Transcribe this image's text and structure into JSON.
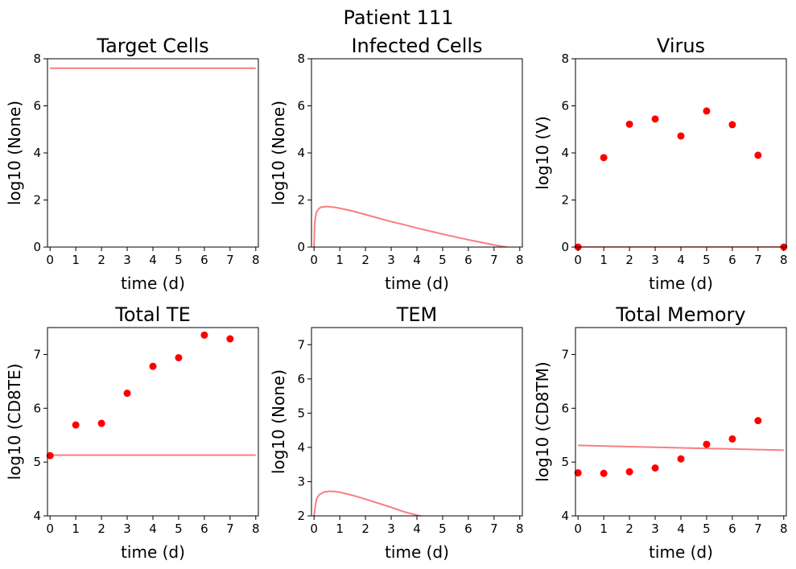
{
  "figure": {
    "title": "Patient 111"
  },
  "colors": {
    "model_line": "#f77f7f",
    "observed_points": "#ff0000"
  },
  "chart_data": [
    {
      "type": "line",
      "title": "Target Cells",
      "xlabel": "time (d)",
      "ylabel": "log10 (None)",
      "xlim": [
        -0.1,
        8.1
      ],
      "ylim": [
        0,
        8
      ],
      "xticks": [
        0,
        1,
        2,
        3,
        4,
        5,
        6,
        7,
        8
      ],
      "yticks": [
        0,
        2,
        4,
        6,
        8
      ],
      "model_line": {
        "x": [
          0,
          8
        ],
        "y": [
          7.6,
          7.6
        ]
      },
      "observed": {
        "x": [],
        "y": []
      }
    },
    {
      "type": "line",
      "title": "Infected Cells",
      "xlabel": "time (d)",
      "ylabel": "log10 (None)",
      "xlim": [
        -0.1,
        8.1
      ],
      "ylim": [
        0,
        8
      ],
      "xticks": [
        0,
        1,
        2,
        3,
        4,
        5,
        6,
        7,
        8
      ],
      "yticks": [
        0,
        2,
        4,
        6,
        8
      ],
      "model_line": {
        "x": [
          0.0,
          0.02,
          0.05,
          0.1,
          0.2,
          0.3,
          0.5,
          0.8,
          1.0,
          1.5,
          2.0,
          2.5,
          3.0,
          3.5,
          4.0,
          4.5,
          5.0,
          5.5,
          6.0,
          6.5,
          7.0,
          7.3,
          7.5
        ],
        "y": [
          0.0,
          0.9,
          1.25,
          1.5,
          1.65,
          1.7,
          1.72,
          1.69,
          1.65,
          1.53,
          1.38,
          1.23,
          1.08,
          0.95,
          0.81,
          0.68,
          0.55,
          0.43,
          0.31,
          0.2,
          0.09,
          0.03,
          0.0
        ]
      },
      "observed": {
        "x": [],
        "y": []
      }
    },
    {
      "type": "scatter",
      "title": "Virus",
      "xlabel": "time (d)",
      "ylabel": "log10 (V)",
      "xlim": [
        -0.1,
        8.1
      ],
      "ylim": [
        0,
        8
      ],
      "xticks": [
        0,
        1,
        2,
        3,
        4,
        5,
        6,
        7,
        8
      ],
      "yticks": [
        0,
        2,
        4,
        6,
        8
      ],
      "model_line": {
        "x": [
          0,
          8
        ],
        "y": [
          0,
          0
        ]
      },
      "observed": {
        "x": [
          0,
          1,
          2,
          3,
          4,
          5,
          6,
          7,
          8
        ],
        "y": [
          0.0,
          3.8,
          5.22,
          5.44,
          4.72,
          5.78,
          5.2,
          3.9,
          0.0
        ]
      }
    },
    {
      "type": "scatter",
      "title": "Total TE",
      "xlabel": "time (d)",
      "ylabel": "log10 (CD8TE)",
      "xlim": [
        -0.1,
        8.1
      ],
      "ylim": [
        4,
        7.5
      ],
      "xticks": [
        0,
        1,
        2,
        3,
        4,
        5,
        6,
        7,
        8
      ],
      "yticks": [
        4,
        5,
        6,
        7
      ],
      "model_line": {
        "x": [
          0,
          8
        ],
        "y": [
          5.13,
          5.13
        ]
      },
      "observed": {
        "x": [
          0,
          1,
          2,
          3,
          4,
          5,
          6,
          7
        ],
        "y": [
          5.12,
          5.69,
          5.72,
          6.28,
          6.78,
          6.94,
          7.36,
          7.29
        ]
      }
    },
    {
      "type": "line",
      "title": "TEM",
      "xlabel": "time (d)",
      "ylabel": "log10 (None)",
      "xlim": [
        -0.1,
        8.1
      ],
      "ylim": [
        2,
        7.5
      ],
      "xticks": [
        0,
        1,
        2,
        3,
        4,
        5,
        6,
        7,
        8
      ],
      "yticks": [
        2,
        3,
        4,
        5,
        6,
        7
      ],
      "model_line": {
        "x": [
          0.0,
          0.05,
          0.1,
          0.2,
          0.4,
          0.6,
          0.8,
          1.0,
          1.5,
          2.0,
          2.5,
          3.0,
          3.5,
          4.0,
          4.2
        ],
        "y": [
          2.0,
          2.3,
          2.5,
          2.62,
          2.7,
          2.72,
          2.71,
          2.69,
          2.6,
          2.49,
          2.37,
          2.25,
          2.12,
          2.02,
          1.99
        ]
      },
      "observed": {
        "x": [],
        "y": []
      }
    },
    {
      "type": "scatter",
      "title": "Total Memory",
      "xlabel": "time (d)",
      "ylabel": "log10 (CD8TM)",
      "xlim": [
        -0.1,
        8.1
      ],
      "ylim": [
        4,
        7.5
      ],
      "xticks": [
        0,
        1,
        2,
        3,
        4,
        5,
        6,
        7,
        8
      ],
      "yticks": [
        4,
        5,
        6,
        7
      ],
      "model_line": {
        "x": [
          0,
          8
        ],
        "y": [
          5.31,
          5.22
        ]
      },
      "observed": {
        "x": [
          0,
          1,
          2,
          3,
          4,
          5,
          6,
          7
        ],
        "y": [
          4.8,
          4.79,
          4.82,
          4.89,
          5.06,
          5.33,
          5.43,
          5.77
        ]
      }
    }
  ]
}
